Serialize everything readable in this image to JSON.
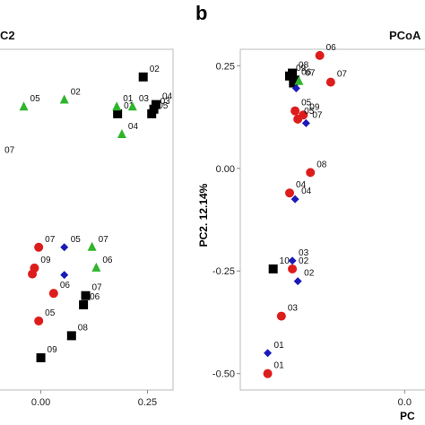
{
  "chart_data": [
    {
      "type": "scatter",
      "panel_label": "",
      "title": "C2",
      "xlabel": "",
      "ylabel": "",
      "x_tick_labels": [
        "0.00",
        "0.25"
      ],
      "y_tick_labels": [],
      "xlim": [
        -0.1,
        0.31
      ],
      "ylim": [
        -0.43,
        0.31
      ],
      "grid": false,
      "series": [
        {
          "marker": "square",
          "color": "#000000",
          "points": [
            {
              "x": 0.24,
              "y": 0.25,
              "label": "02"
            },
            {
              "x": 0.27,
              "y": 0.19,
              "label": "04"
            },
            {
              "x": 0.265,
              "y": 0.18,
              "label": "03"
            },
            {
              "x": 0.26,
              "y": 0.17,
              "label": "05"
            },
            {
              "x": 0.18,
              "y": 0.17,
              "label": "01"
            },
            {
              "x": 0.105,
              "y": -0.225,
              "label": "07"
            },
            {
              "x": 0.1,
              "y": -0.245,
              "label": "06"
            },
            {
              "x": 0.072,
              "y": -0.312,
              "label": "08"
            },
            {
              "x": 0.0,
              "y": -0.36,
              "label": "09"
            }
          ]
        },
        {
          "marker": "triangle",
          "color": "#2fb52b",
          "points": [
            {
              "x": -0.04,
              "y": 0.185,
              "label": "05"
            },
            {
              "x": 0.055,
              "y": 0.2,
              "label": "02"
            },
            {
              "x": 0.178,
              "y": 0.185,
              "label": "01"
            },
            {
              "x": 0.215,
              "y": 0.185,
              "label": "03"
            },
            {
              "x": 0.19,
              "y": 0.125,
              "label": "04"
            },
            {
              "x": 0.12,
              "y": -0.12,
              "label": "07"
            },
            {
              "x": 0.13,
              "y": -0.165,
              "label": "06"
            }
          ]
        },
        {
          "marker": "diamond",
          "color": "#1a1ab8",
          "points": [
            {
              "x": 0.055,
              "y": -0.12,
              "label": "05"
            },
            {
              "x": 0.055,
              "y": -0.18,
              "label": ""
            }
          ]
        },
        {
          "marker": "circle",
          "color": "#dd1c1c",
          "points": [
            {
              "x": -0.005,
              "y": -0.12,
              "label": "07"
            },
            {
              "x": -0.015,
              "y": -0.165,
              "label": "09"
            },
            {
              "x": -0.02,
              "y": -0.178,
              "label": ""
            },
            {
              "x": 0.03,
              "y": -0.22,
              "label": "06"
            },
            {
              "x": -0.005,
              "y": -0.28,
              "label": "05"
            }
          ]
        }
      ],
      "free_labels": [
        {
          "x": -0.085,
          "y": 0.085,
          "text": "07"
        }
      ]
    },
    {
      "type": "scatter",
      "panel_label": "b",
      "title": "PCoA",
      "xlabel": "PC",
      "ylabel": "PC2. 12.14%",
      "x_tick_labels": [
        "0.0"
      ],
      "y_tick_labels": [
        "0.25",
        "0.00",
        "-0.25",
        "-0.50"
      ],
      "xlim": [
        -0.3,
        0.06
      ],
      "ylim": [
        -0.54,
        0.29
      ],
      "grid": false,
      "series": [
        {
          "marker": "square",
          "color": "#000000",
          "points": [
            {
              "x": -0.205,
              "y": 0.232,
              "label": "08"
            },
            {
              "x": -0.21,
              "y": 0.225,
              "label": "09"
            },
            {
              "x": -0.2,
              "y": 0.215,
              "label": "06"
            },
            {
              "x": -0.203,
              "y": 0.208,
              "label": ""
            },
            {
              "x": -0.24,
              "y": -0.245,
              "label": "10"
            }
          ]
        },
        {
          "marker": "triangle",
          "color": "#2fb52b",
          "points": [
            {
              "x": -0.193,
              "y": 0.212,
              "label": "07"
            }
          ]
        },
        {
          "marker": "diamond",
          "color": "#1a1ab8",
          "points": [
            {
              "x": -0.198,
              "y": 0.195,
              "label": ""
            },
            {
              "x": -0.18,
              "y": 0.11,
              "label": "07"
            },
            {
              "x": -0.2,
              "y": -0.075,
              "label": "04"
            },
            {
              "x": -0.205,
              "y": -0.225,
              "label": "03"
            },
            {
              "x": -0.195,
              "y": -0.275,
              "label": "02"
            },
            {
              "x": -0.25,
              "y": -0.45,
              "label": "01"
            }
          ]
        },
        {
          "marker": "circle",
          "color": "#dd1c1c",
          "points": [
            {
              "x": -0.155,
              "y": 0.275,
              "label": "06"
            },
            {
              "x": -0.135,
              "y": 0.21,
              "label": "07"
            },
            {
              "x": -0.2,
              "y": 0.14,
              "label": "05"
            },
            {
              "x": -0.185,
              "y": 0.13,
              "label": "09"
            },
            {
              "x": -0.195,
              "y": 0.12,
              "label": "05"
            },
            {
              "x": -0.172,
              "y": -0.01,
              "label": "08"
            },
            {
              "x": -0.21,
              "y": -0.06,
              "label": "04"
            },
            {
              "x": -0.205,
              "y": -0.245,
              "label": "02"
            },
            {
              "x": -0.225,
              "y": -0.36,
              "label": "03"
            },
            {
              "x": -0.25,
              "y": -0.5,
              "label": "01"
            }
          ]
        }
      ],
      "free_labels": []
    }
  ]
}
